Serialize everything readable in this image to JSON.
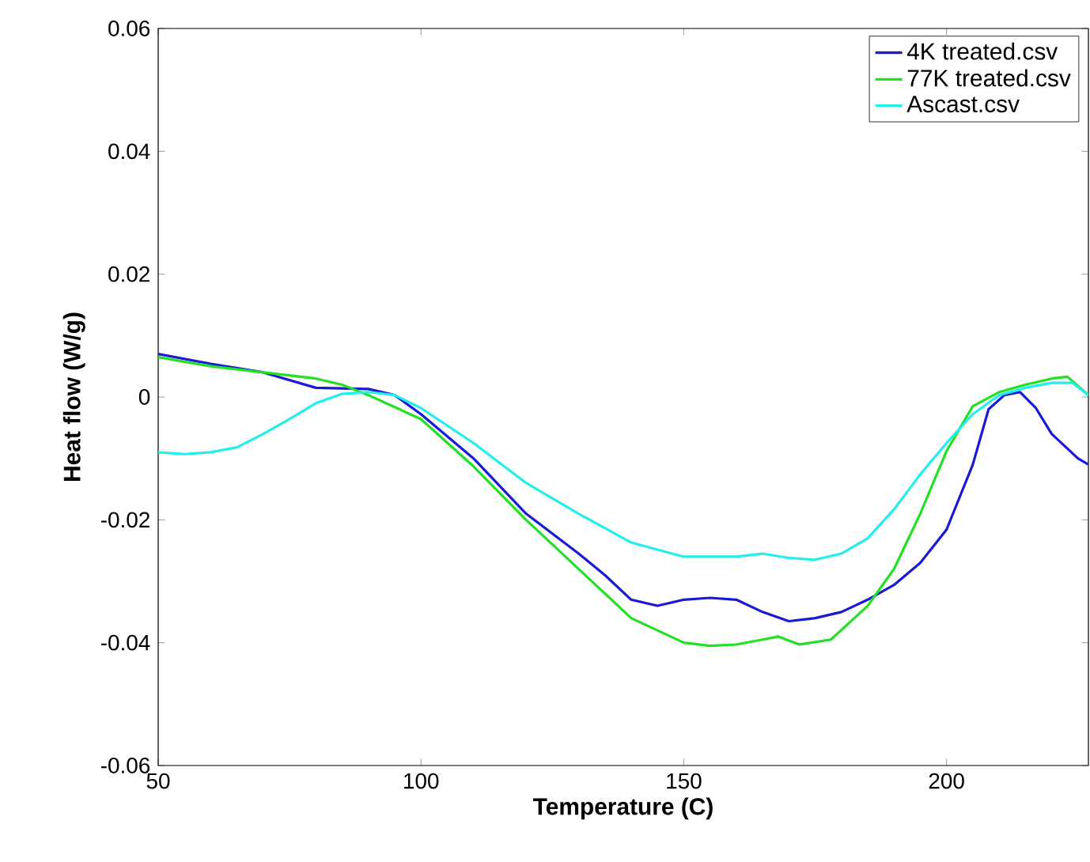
{
  "chart_data": {
    "type": "line",
    "xlabel": "Temperature (C)",
    "ylabel": "Heat flow (W/g)",
    "xlim": [
      50,
      227
    ],
    "ylim": [
      -0.06,
      0.06
    ],
    "xticks": [
      50,
      100,
      150,
      200
    ],
    "yticks": [
      -0.06,
      -0.04,
      -0.02,
      0,
      0.02,
      0.04,
      0.06
    ],
    "grid": false,
    "legend": "top right",
    "marker": "none",
    "line_style": "solid",
    "series": [
      {
        "name": "4K treated.csv",
        "color": "#1a1ad6",
        "x": [
          50,
          60,
          70,
          80,
          90,
          95,
          100,
          110,
          120,
          130,
          135,
          140,
          145,
          150,
          155,
          160,
          165,
          170,
          175,
          180,
          185,
          190,
          195,
          200,
          205,
          208,
          211,
          214,
          217,
          220,
          225,
          227
        ],
        "values": [
          0.007,
          0.0054,
          0.004,
          0.0015,
          0.0013,
          0.0003,
          -0.0028,
          -0.01,
          -0.019,
          -0.0255,
          -0.029,
          -0.033,
          -0.034,
          -0.033,
          -0.0327,
          -0.033,
          -0.035,
          -0.0365,
          -0.036,
          -0.035,
          -0.033,
          -0.0306,
          -0.027,
          -0.0216,
          -0.011,
          -0.002,
          0.0003,
          0.0008,
          -0.0018,
          -0.006,
          -0.01,
          -0.011
        ]
      },
      {
        "name": "77K treated.csv",
        "color": "#22e022",
        "x": [
          50,
          60,
          70,
          80,
          85,
          90,
          100,
          110,
          120,
          130,
          140,
          150,
          155,
          160,
          165,
          168,
          172,
          178,
          185,
          190,
          195,
          200,
          205,
          210,
          215,
          220,
          223,
          227
        ],
        "values": [
          0.0065,
          0.005,
          0.004,
          0.003,
          0.002,
          0.0003,
          -0.0036,
          -0.0113,
          -0.02,
          -0.028,
          -0.036,
          -0.04,
          -0.0405,
          -0.0403,
          -0.0395,
          -0.039,
          -0.0403,
          -0.0395,
          -0.034,
          -0.028,
          -0.019,
          -0.0088,
          -0.0015,
          0.0008,
          0.002,
          0.003,
          0.0033,
          0.0003
        ]
      },
      {
        "name": "Ascast.csv",
        "color": "#22eeee",
        "x": [
          50,
          55,
          60,
          65,
          70,
          75,
          80,
          85,
          90,
          95,
          100,
          110,
          120,
          130,
          140,
          150,
          160,
          165,
          170,
          175,
          180,
          185,
          190,
          195,
          200,
          205,
          210,
          215,
          220,
          224,
          227
        ],
        "values": [
          -0.009,
          -0.0093,
          -0.009,
          -0.0082,
          -0.006,
          -0.0036,
          -0.001,
          0.0005,
          0.0008,
          0.0003,
          -0.0018,
          -0.0075,
          -0.014,
          -0.019,
          -0.0237,
          -0.026,
          -0.026,
          -0.0255,
          -0.0262,
          -0.0265,
          -0.0255,
          -0.023,
          -0.0183,
          -0.0126,
          -0.0075,
          -0.0028,
          0.0003,
          0.0015,
          0.0023,
          0.0023,
          0.0003
        ]
      }
    ]
  }
}
